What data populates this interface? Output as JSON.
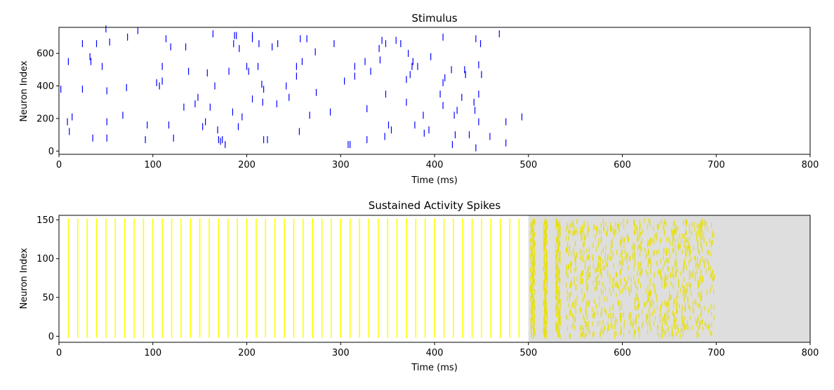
{
  "chart_data": [
    {
      "type": "scatter",
      "style": "raster",
      "title": "Stimulus",
      "xlabel": "Time (ms)",
      "ylabel": "Neuron Index",
      "xlim": [
        0,
        800
      ],
      "ylim": [
        -20,
        760
      ],
      "xticks": [
        "0",
        "100",
        "200",
        "300",
        "400",
        "500",
        "600",
        "700",
        "800"
      ],
      "xtick_values": [
        0,
        100,
        200,
        300,
        400,
        500,
        600,
        700,
        800
      ],
      "yticks": [
        "0",
        "200",
        "400",
        "600"
      ],
      "ytick_values": [
        0,
        200,
        400,
        600
      ],
      "marker_color": "#0000ff",
      "points": [
        [
          2,
          380
        ],
        [
          9,
          180
        ],
        [
          10,
          550
        ],
        [
          11,
          120
        ],
        [
          14,
          210
        ],
        [
          25,
          660
        ],
        [
          25,
          380
        ],
        [
          33,
          580
        ],
        [
          34,
          550
        ],
        [
          36,
          80
        ],
        [
          40,
          660
        ],
        [
          46,
          520
        ],
        [
          50,
          750
        ],
        [
          51,
          370
        ],
        [
          51,
          180
        ],
        [
          51,
          80
        ],
        [
          54,
          670
        ],
        [
          68,
          220
        ],
        [
          72,
          390
        ],
        [
          73,
          700
        ],
        [
          84,
          740
        ],
        [
          92,
          70
        ],
        [
          94,
          160
        ],
        [
          104,
          420
        ],
        [
          107,
          400
        ],
        [
          110,
          430
        ],
        [
          110,
          520
        ],
        [
          114,
          690
        ],
        [
          117,
          160
        ],
        [
          119,
          640
        ],
        [
          122,
          80
        ],
        [
          133,
          270
        ],
        [
          135,
          640
        ],
        [
          138,
          490
        ],
        [
          145,
          290
        ],
        [
          148,
          330
        ],
        [
          153,
          150
        ],
        [
          156,
          180
        ],
        [
          158,
          480
        ],
        [
          161,
          270
        ],
        [
          164,
          720
        ],
        [
          166,
          400
        ],
        [
          169,
          130
        ],
        [
          170,
          70
        ],
        [
          172,
          60
        ],
        [
          174,
          70
        ],
        [
          177,
          40
        ],
        [
          181,
          490
        ],
        [
          185,
          240
        ],
        [
          186,
          660
        ],
        [
          187,
          710
        ],
        [
          189,
          710
        ],
        [
          191,
          150
        ],
        [
          192,
          630
        ],
        [
          195,
          210
        ],
        [
          200,
          520
        ],
        [
          202,
          490
        ],
        [
          206,
          320
        ],
        [
          206,
          710
        ],
        [
          206,
          690
        ],
        [
          212,
          520
        ],
        [
          213,
          660
        ],
        [
          216,
          410
        ],
        [
          217,
          300
        ],
        [
          218,
          380
        ],
        [
          218,
          70
        ],
        [
          222,
          70
        ],
        [
          227,
          640
        ],
        [
          232,
          290
        ],
        [
          233,
          660
        ],
        [
          242,
          400
        ],
        [
          245,
          330
        ],
        [
          253,
          520
        ],
        [
          253,
          460
        ],
        [
          256,
          120
        ],
        [
          257,
          690
        ],
        [
          259,
          550
        ],
        [
          264,
          690
        ],
        [
          267,
          220
        ],
        [
          273,
          610
        ],
        [
          274,
          360
        ],
        [
          289,
          240
        ],
        [
          293,
          660
        ],
        [
          304,
          430
        ],
        [
          308,
          40
        ],
        [
          310,
          40
        ],
        [
          315,
          520
        ],
        [
          315,
          460
        ],
        [
          326,
          550
        ],
        [
          328,
          70
        ],
        [
          328,
          260
        ],
        [
          332,
          490
        ],
        [
          341,
          630
        ],
        [
          342,
          560
        ],
        [
          344,
          680
        ],
        [
          347,
          90
        ],
        [
          348,
          660
        ],
        [
          348,
          350
        ],
        [
          351,
          160
        ],
        [
          354,
          130
        ],
        [
          359,
          680
        ],
        [
          364,
          660
        ],
        [
          370,
          300
        ],
        [
          370,
          440
        ],
        [
          372,
          600
        ],
        [
          374,
          470
        ],
        [
          376,
          520
        ],
        [
          377,
          550
        ],
        [
          379,
          160
        ],
        [
          382,
          520
        ],
        [
          388,
          220
        ],
        [
          389,
          110
        ],
        [
          394,
          130
        ],
        [
          396,
          580
        ],
        [
          406,
          350
        ],
        [
          409,
          700
        ],
        [
          409,
          280
        ],
        [
          409,
          420
        ],
        [
          411,
          450
        ],
        [
          418,
          500
        ],
        [
          419,
          40
        ],
        [
          421,
          220
        ],
        [
          422,
          100
        ],
        [
          424,
          250
        ],
        [
          429,
          330
        ],
        [
          432,
          500
        ],
        [
          433,
          470
        ],
        [
          437,
          100
        ],
        [
          442,
          300
        ],
        [
          443,
          250
        ],
        [
          444,
          690
        ],
        [
          444,
          20
        ],
        [
          447,
          180
        ],
        [
          447,
          530
        ],
        [
          447,
          350
        ],
        [
          449,
          660
        ],
        [
          450,
          470
        ],
        [
          459,
          90
        ],
        [
          469,
          720
        ],
        [
          476,
          50
        ],
        [
          476,
          180
        ],
        [
          493,
          210
        ]
      ]
    },
    {
      "type": "scatter",
      "style": "raster",
      "title": "Sustained Activity Spikes",
      "xlabel": "Time (ms)",
      "ylabel": "Neuron Index",
      "xlim": [
        0,
        800
      ],
      "ylim": [
        -7.8,
        155.8
      ],
      "xticks": [
        "0",
        "100",
        "200",
        "300",
        "400",
        "500",
        "600",
        "700",
        "800"
      ],
      "xtick_values": [
        0,
        100,
        200,
        300,
        400,
        500,
        600,
        700,
        800
      ],
      "yticks": [
        "0",
        "50",
        "100",
        "150"
      ],
      "ytick_values": [
        0,
        50,
        100,
        150
      ],
      "marker_color": "#ffff00",
      "shaded_region_x": [
        500,
        800
      ],
      "shaded_color": "#dedede",
      "stimulus_spike_times": [
        10,
        20,
        30,
        40,
        50,
        60,
        70,
        80,
        90,
        100,
        110,
        120,
        130,
        140,
        150,
        160,
        170,
        180,
        190,
        200,
        210,
        220,
        230,
        240,
        250,
        260,
        270,
        280,
        290,
        300,
        310,
        320,
        330,
        340,
        350,
        360,
        370,
        380,
        390,
        400,
        410,
        420,
        430,
        440,
        450,
        460,
        470,
        480,
        490
      ],
      "n_neurons": 150,
      "sustained_spike_groups_time_ranges": [
        [
          502,
          507
        ],
        [
          516,
          520
        ],
        [
          529,
          534
        ],
        [
          540,
          552
        ],
        [
          555,
          566
        ],
        [
          568,
          583
        ],
        [
          583,
          600
        ],
        [
          598,
          618
        ],
        [
          612,
          632
        ],
        [
          627,
          648
        ],
        [
          640,
          660
        ],
        [
          653,
          672
        ],
        [
          665,
          685
        ],
        [
          678,
          698
        ]
      ]
    }
  ]
}
